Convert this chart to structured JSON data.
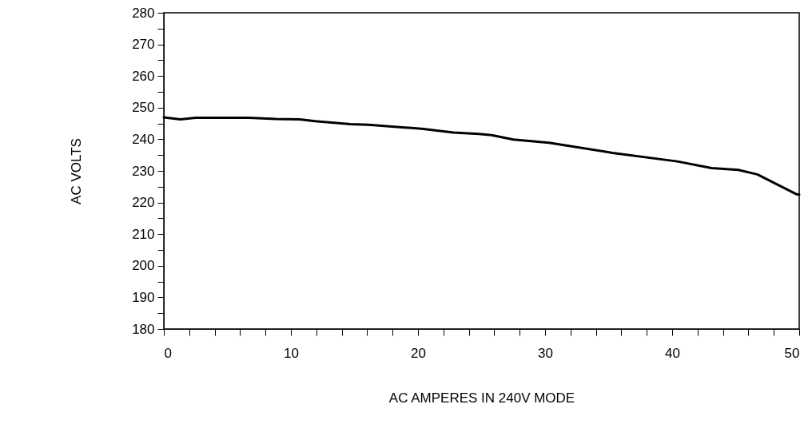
{
  "chart_data": {
    "type": "line",
    "xlabel": "AC AMPERES IN 240V MODE",
    "ylabel": "AC VOLTS",
    "x": [
      0,
      1.3,
      2.5,
      6.7,
      8.8,
      10.7,
      11.9,
      14.7,
      16.1,
      20.3,
      22.8,
      24.8,
      25.8,
      27.5,
      30.3,
      35.3,
      40.4,
      43.1,
      45.2,
      46.7,
      49.8,
      50
    ],
    "series": [
      {
        "color": "#000000",
        "values": [
          246.9,
          246.3,
          246.8,
          246.8,
          246.4,
          246.3,
          245.7,
          244.8,
          244.6,
          243.3,
          242.1,
          241.7,
          241.3,
          239.9,
          238.9,
          235.7,
          233.0,
          230.9,
          230.3,
          228.9,
          222.6,
          222.5
        ]
      }
    ],
    "xlim": [
      0,
      50
    ],
    "ylim": [
      180,
      280
    ],
    "xticks": [
      0,
      {
        "value": 2,
        "label": null
      },
      {
        "value": 4,
        "label": null
      },
      {
        "value": 6,
        "label": null
      },
      {
        "value": 8,
        "label": null
      },
      10,
      {
        "value": 12,
        "label": null
      },
      {
        "value": 14,
        "label": null
      },
      {
        "value": 16,
        "label": null
      },
      {
        "value": 18,
        "label": null
      },
      20,
      {
        "value": 22,
        "label": null
      },
      {
        "value": 24,
        "label": null
      },
      {
        "value": 26,
        "label": null
      },
      {
        "value": 28,
        "label": null
      },
      30,
      {
        "value": 32,
        "label": null
      },
      {
        "value": 34,
        "label": null
      },
      {
        "value": 36,
        "label": null
      },
      {
        "value": 38,
        "label": null
      },
      40,
      {
        "value": 42,
        "label": null
      },
      {
        "value": 44,
        "label": null
      },
      {
        "value": 46,
        "label": null
      },
      {
        "value": 48,
        "label": null
      },
      50
    ],
    "yticks": [
      180,
      {
        "value": 185,
        "label": null
      },
      190,
      {
        "value": 195,
        "label": null
      },
      200,
      {
        "value": 205,
        "label": null
      },
      210,
      {
        "value": 215,
        "label": null
      },
      220,
      {
        "value": 225,
        "label": null
      },
      230,
      {
        "value": 235,
        "label": null
      },
      240,
      {
        "value": 245,
        "label": null
      },
      250,
      {
        "value": 255,
        "label": null
      },
      260,
      {
        "value": 265,
        "label": null
      },
      270,
      {
        "value": 275,
        "label": null
      },
      280
    ],
    "grid": false,
    "marker": "none",
    "line_style": "solid"
  }
}
